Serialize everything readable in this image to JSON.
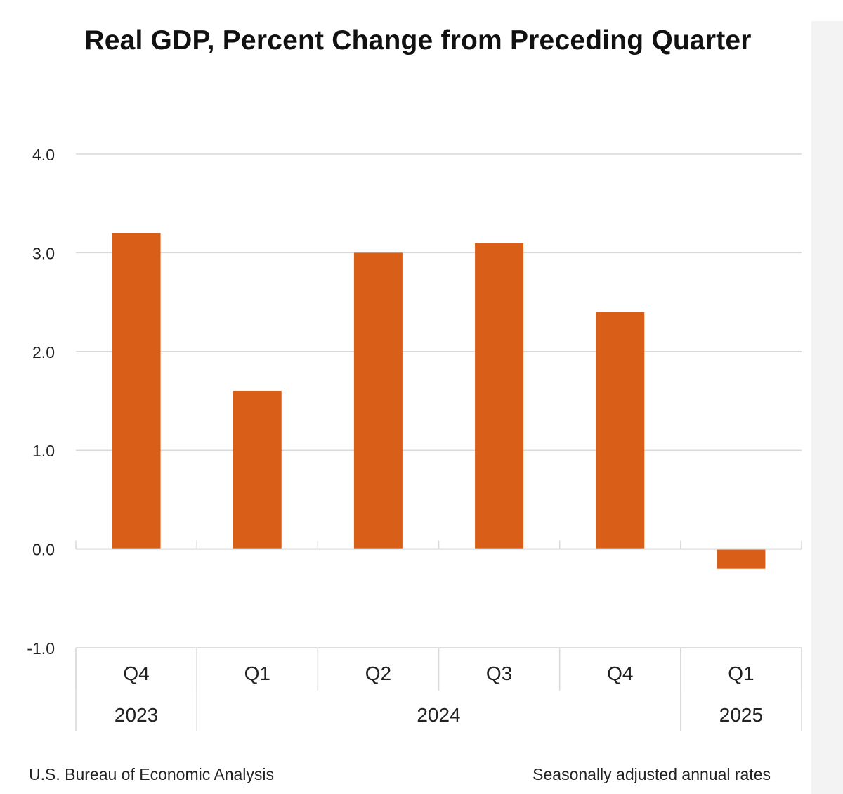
{
  "chart_data": {
    "type": "bar",
    "title": "Real GDP, Percent Change from Preceding Quarter",
    "categories": [
      "Q4",
      "Q1",
      "Q2",
      "Q3",
      "Q4",
      "Q1"
    ],
    "years": [
      {
        "label": "2023",
        "span": 1
      },
      {
        "label": "2024",
        "span": 4
      },
      {
        "label": "2025",
        "span": 1
      }
    ],
    "values": [
      3.2,
      1.6,
      3.0,
      3.1,
      2.4,
      -0.2
    ],
    "ylim": [
      -1.0,
      4.0
    ],
    "yticks": [
      "4.0",
      "3.0",
      "2.0",
      "1.0",
      "0.0",
      "-1.0"
    ],
    "xlabel": "",
    "ylabel": "",
    "grid": true,
    "bar_color": "#d95f19",
    "grid_color": "#d9d9d9"
  },
  "footer": {
    "source": "U.S. Bureau of Economic Analysis",
    "note": "Seasonally adjusted annual rates"
  }
}
